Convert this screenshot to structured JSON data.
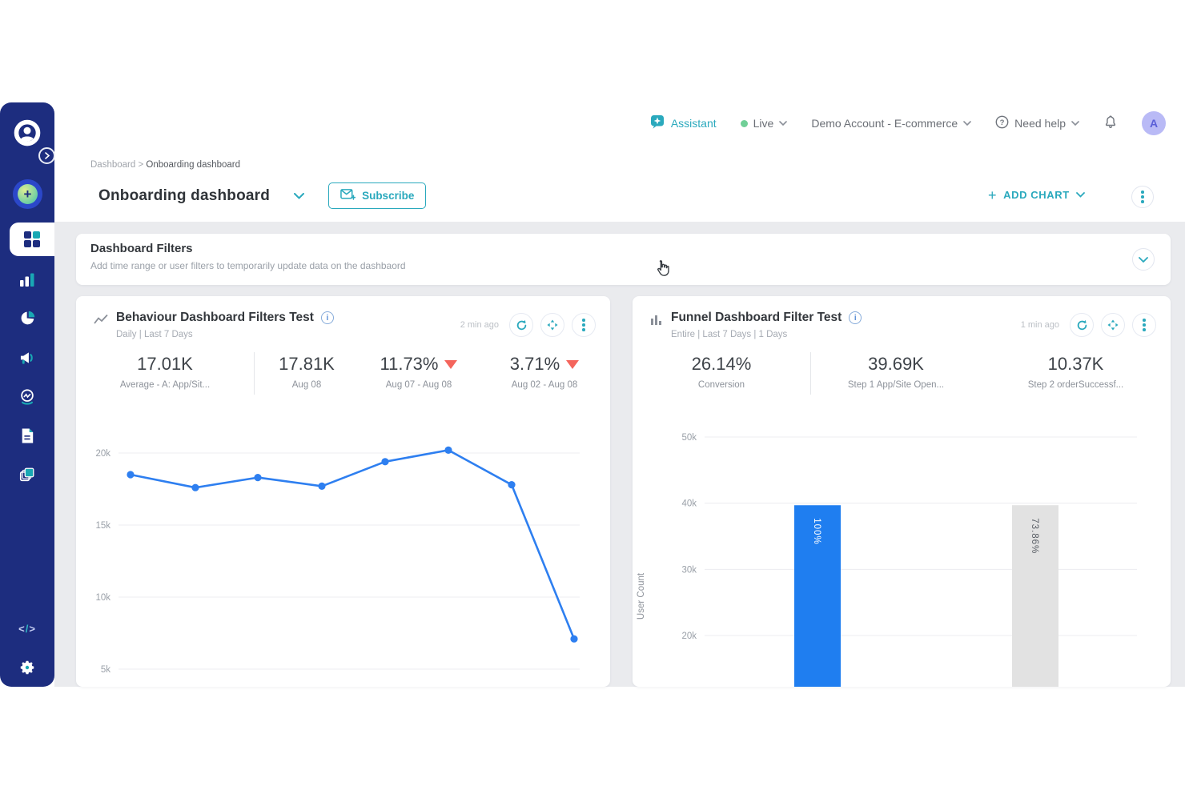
{
  "colors": {
    "accent_teal": "#2AA9BD",
    "sidebar_navy": "#1D2D7F",
    "chart_blue": "#2E7FF0",
    "funnel_bar_blue": "#1F7EF0",
    "funnel_bar_gray": "#E2E2E2",
    "trend_down_red": "#F4655C",
    "live_green": "#70CF97",
    "avatar_bg": "#B9BAF6",
    "avatar_text": "#5A5FD8"
  },
  "header": {
    "assistant": "Assistant",
    "live": "Live",
    "account": "Demo Account - E-commerce",
    "need_help": "Need help",
    "avatar_initial": "A"
  },
  "breadcrumb": {
    "root": "Dashboard",
    "separator": ">",
    "current": "Onboarding dashboard"
  },
  "title_bar": {
    "title": "Onboarding dashboard",
    "subscribe_label": "Subscribe",
    "add_chart_label": "ADD CHART",
    "add_chart_plus": "+"
  },
  "filters_panel": {
    "title": "Dashboard Filters",
    "subtitle": "Add time range or user filters to temporarily update data on the dashbaord"
  },
  "behaviour_card": {
    "title": "Behaviour Dashboard Filters Test",
    "subtitle": "Daily | Last 7 Days",
    "updated": "2 min ago",
    "info_glyph": "i",
    "stats": [
      {
        "value": "17.01K",
        "label": "Average - A: App/Sit..."
      },
      {
        "value": "17.81K",
        "label": "Aug 08"
      },
      {
        "value": "11.73%",
        "label": "Aug 07 - Aug 08",
        "trend": "down"
      },
      {
        "value": "3.71%",
        "label": "Aug 02 - Aug 08",
        "trend": "down"
      }
    ]
  },
  "funnel_card": {
    "title": "Funnel Dashboard Filter Test",
    "subtitle": "Entire | Last 7 Days | 1 Days",
    "updated": "1 min ago",
    "info_glyph": "i",
    "stats": [
      {
        "value": "26.14%",
        "label": "Conversion"
      },
      {
        "value": "39.69K",
        "label": "Step 1 App/Site Open..."
      },
      {
        "value": "10.37K",
        "label": "Step 2 orderSuccessf..."
      }
    ]
  },
  "chart_data": [
    {
      "type": "line",
      "title": "Behaviour Dashboard Filters Test",
      "xlabel": "",
      "ylabel": "",
      "yticks": [
        {
          "label": "20k",
          "value": 20000
        },
        {
          "label": "15k",
          "value": 15000
        },
        {
          "label": "10k",
          "value": 10000
        },
        {
          "label": "5k",
          "value": 5000
        }
      ],
      "ylim": [
        5000,
        20000
      ],
      "grid": true,
      "legend": false,
      "values": [
        18500,
        17600,
        18300,
        17700,
        19400,
        20200,
        17800,
        7100
      ],
      "color": "#2E7FF0"
    },
    {
      "type": "bar",
      "title": "Funnel Dashboard Filter Test",
      "xlabel": "",
      "ylabel": "User Count",
      "yticks": [
        {
          "label": "50k",
          "value": 50000
        },
        {
          "label": "40k",
          "value": 40000
        },
        {
          "label": "30k",
          "value": 30000
        },
        {
          "label": "20k",
          "value": 20000
        }
      ],
      "ylim_top": 50000,
      "grid": true,
      "legend": false,
      "bars": [
        {
          "label": "100%",
          "value": 39690,
          "color": "#1F7EF0",
          "label_color": "#FFFFFF"
        },
        {
          "label": "73.86%",
          "value": 39690,
          "color": "#E2E2E2",
          "label_color": "#5A5F66"
        }
      ]
    }
  ],
  "icons": {
    "sidebar": [
      "clevertap-logo",
      "collapse-chevron",
      "create-plus",
      "dashboards-grid",
      "analytics-bars",
      "segments-pie",
      "campaigns-megaphone",
      "engage-person-pulse",
      "reports-document",
      "boards-layers",
      "code-brackets",
      "settings-gear"
    ],
    "code_glyphs": {
      "lt": "<",
      "slash": "/",
      "gt": ">"
    },
    "topbar": [
      "assistant-bubble-star",
      "live-dot",
      "help-question-circle",
      "bell",
      "avatar"
    ],
    "card_buttons": [
      "refresh",
      "expand",
      "kebab-menu"
    ]
  }
}
